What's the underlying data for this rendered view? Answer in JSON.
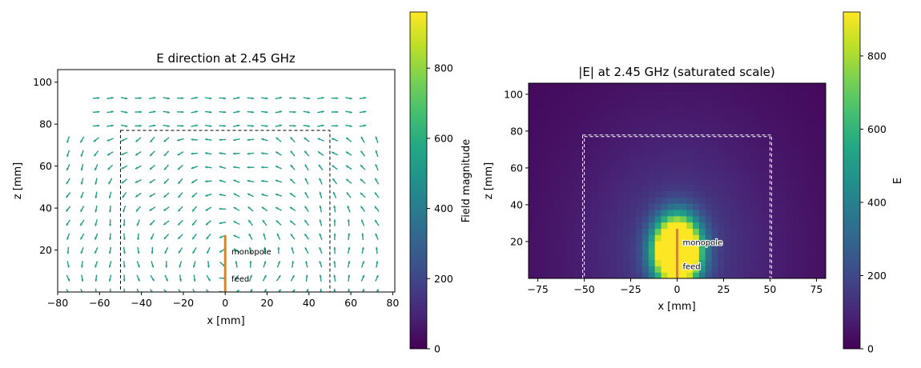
{
  "chart_data": [
    {
      "type": "quiver",
      "title": "E direction at 2.45 GHz",
      "xlabel": "x [mm]",
      "ylabel": "z [mm]",
      "xlim": [
        -80,
        81
      ],
      "ylim": [
        0,
        106
      ],
      "xticks": [
        -80,
        -60,
        -40,
        -20,
        0,
        20,
        40,
        60,
        80
      ],
      "yticks": [
        20,
        40,
        60,
        80,
        100
      ],
      "xtick_labels": [
        "−80",
        "−60",
        "−40",
        "−20",
        "0",
        "20",
        "40",
        "60",
        "80"
      ],
      "ytick_labels": [
        "20",
        "40",
        "60",
        "80",
        "100"
      ],
      "grid": false,
      "colorbar": {
        "label": "Field magnitude",
        "range": [
          0,
          960
        ],
        "ticks": [
          0,
          200,
          400,
          600,
          800
        ],
        "tick_labels": [
          "0",
          "200",
          "400",
          "600",
          "800"
        ],
        "colormap": "viridis"
      },
      "region_box": {
        "x": [
          -50,
          50
        ],
        "z": [
          0,
          77
        ]
      },
      "antenna": {
        "x": 0,
        "z": [
          0,
          27
        ],
        "color": "#d4862a"
      },
      "annotations": [
        {
          "text": "monopole",
          "x": 3,
          "z": 18,
          "color": "#d4862a"
        },
        {
          "text": "feed",
          "x": 3,
          "z": 5,
          "color": "#d62728"
        }
      ]
    },
    {
      "type": "heatmap",
      "title": "|E| at 2.45 GHz (saturated scale)",
      "xlabel": "x [mm]",
      "ylabel": "z [mm]",
      "xlim": [
        -80,
        80
      ],
      "ylim": [
        0,
        106
      ],
      "xticks": [
        -75,
        -50,
        -25,
        0,
        25,
        50,
        75
      ],
      "yticks": [
        20,
        40,
        60,
        80,
        100
      ],
      "xtick_labels": [
        "−75",
        "−50",
        "−25",
        "0",
        "25",
        "50",
        "75"
      ],
      "ytick_labels": [
        "20",
        "40",
        "60",
        "80",
        "100"
      ],
      "grid": false,
      "colorbar": {
        "label": "E",
        "range": [
          0,
          920
        ],
        "ticks": [
          0,
          200,
          400,
          600,
          800
        ],
        "tick_labels": [
          "0",
          "200",
          "400",
          "600",
          "800"
        ],
        "colormap": "viridis"
      },
      "hotspot": {
        "x": 0,
        "z": 15,
        "saturated_above": 920
      },
      "region_box": {
        "x": [
          -50,
          50
        ],
        "z": [
          0,
          77
        ]
      },
      "antenna": {
        "x": 0,
        "z": [
          0,
          27
        ],
        "color": "#d4862a"
      },
      "annotations": [
        {
          "text": "monopole",
          "x": 3,
          "z": 18,
          "color": "#d4862a"
        },
        {
          "text": "feed",
          "x": 3,
          "z": 5,
          "color": "#d62728"
        }
      ]
    }
  ]
}
